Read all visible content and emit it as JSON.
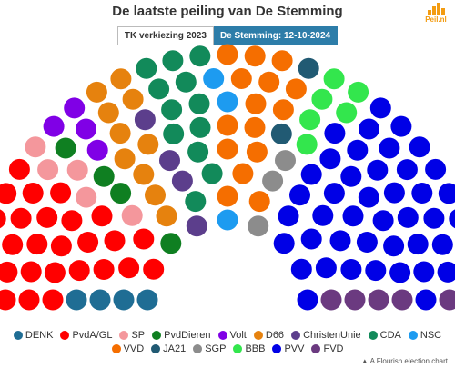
{
  "title": "De laatste peiling van De Stemming",
  "logo": {
    "text": "Peil.nl",
    "color": "#f39c12"
  },
  "tabs": [
    {
      "label": "TK verkiezing 2023",
      "active": false
    },
    {
      "label": "De Stemming: 12-10-2024",
      "active": true
    }
  ],
  "credit": "A Flourish election chart",
  "chart_data": {
    "type": "parliament",
    "total_seats": 150,
    "parties": [
      {
        "name": "DENK",
        "seats": 4,
        "color": "#1f6d94"
      },
      {
        "name": "PvdA/GL",
        "seats": 28,
        "color": "#ff0000"
      },
      {
        "name": "SP",
        "seats": 5,
        "color": "#f4979c"
      },
      {
        "name": "PvdDieren",
        "seats": 4,
        "color": "#0f7f21"
      },
      {
        "name": "Volt",
        "seats": 4,
        "color": "#8000e6"
      },
      {
        "name": "D66",
        "seats": 10,
        "color": "#e6820e"
      },
      {
        "name": "ChristenUnie",
        "seats": 4,
        "color": "#5c3e8c"
      },
      {
        "name": "CDA",
        "seats": 12,
        "color": "#128a5a"
      },
      {
        "name": "NSC",
        "seats": 3,
        "color": "#1d9bf0"
      },
      {
        "name": "VVD",
        "seats": 15,
        "color": "#f56e00"
      },
      {
        "name": "JA21",
        "seats": 2,
        "color": "#215a73"
      },
      {
        "name": "SGP",
        "seats": 3,
        "color": "#8c8c8c"
      },
      {
        "name": "BBB",
        "seats": 6,
        "color": "#33e64d"
      },
      {
        "name": "PVV",
        "seats": 44,
        "color": "#0000e6"
      },
      {
        "name": "FVD",
        "seats": 6,
        "color": "#6b3a80"
      }
    ]
  }
}
